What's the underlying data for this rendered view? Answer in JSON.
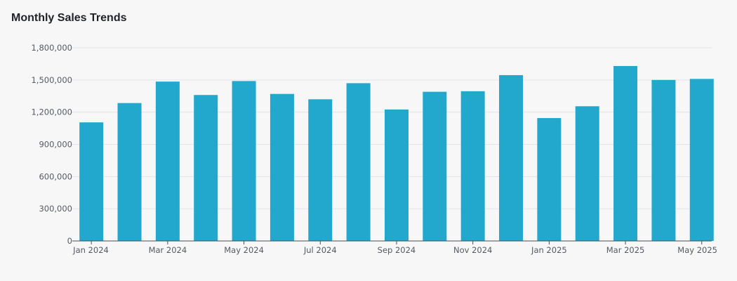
{
  "chart_data": {
    "type": "bar",
    "title": "Monthly Sales Trends",
    "xlabel": "",
    "ylabel": "",
    "categories": [
      "Jan 2024",
      "Feb 2024",
      "Mar 2024",
      "Apr 2024",
      "May 2024",
      "Jun 2024",
      "Jul 2024",
      "Aug 2024",
      "Sep 2024",
      "Oct 2024",
      "Nov 2024",
      "Dec 2024",
      "Jan 2025",
      "Feb 2025",
      "Mar 2025",
      "Apr 2025",
      "May 2025"
    ],
    "x_tick_labels": [
      {
        "category": "Jan 2024",
        "label": "Jan 2024"
      },
      {
        "category": "Mar 2024",
        "label": "Mar 2024"
      },
      {
        "category": "May 2024",
        "label": "May 2024"
      },
      {
        "category": "Jul 2024",
        "label": "Jul 2024"
      },
      {
        "category": "Sep 2024",
        "label": "Sep 2024"
      },
      {
        "category": "Nov 2024",
        "label": "Nov 2024"
      },
      {
        "category": "Jan 2025",
        "label": "Jan 2025"
      },
      {
        "category": "Mar 2025",
        "label": "Mar 2025"
      },
      {
        "category": "May 2025",
        "label": "May 2025"
      }
    ],
    "values": [
      1105000,
      1285000,
      1485000,
      1360000,
      1490000,
      1370000,
      1320000,
      1470000,
      1225000,
      1390000,
      1395000,
      1545000,
      1145000,
      1255000,
      1630000,
      1500000,
      1510000
    ],
    "ylim": [
      0,
      1800000
    ],
    "y_ticks": [
      0,
      300000,
      600000,
      900000,
      1200000,
      1500000,
      1800000
    ],
    "y_tick_labels": [
      "0",
      "300,000",
      "600,000",
      "900,000",
      "1,200,000",
      "1,500,000",
      "1,800,000"
    ],
    "grid": true,
    "legend": "none",
    "colors": {
      "bar": "#22a8cc",
      "background": "#f7f7f8",
      "grid": "#e2e4e8",
      "axis": "#4a4f55",
      "tick_text": "#555a60",
      "title_text": "#1f2328"
    }
  }
}
